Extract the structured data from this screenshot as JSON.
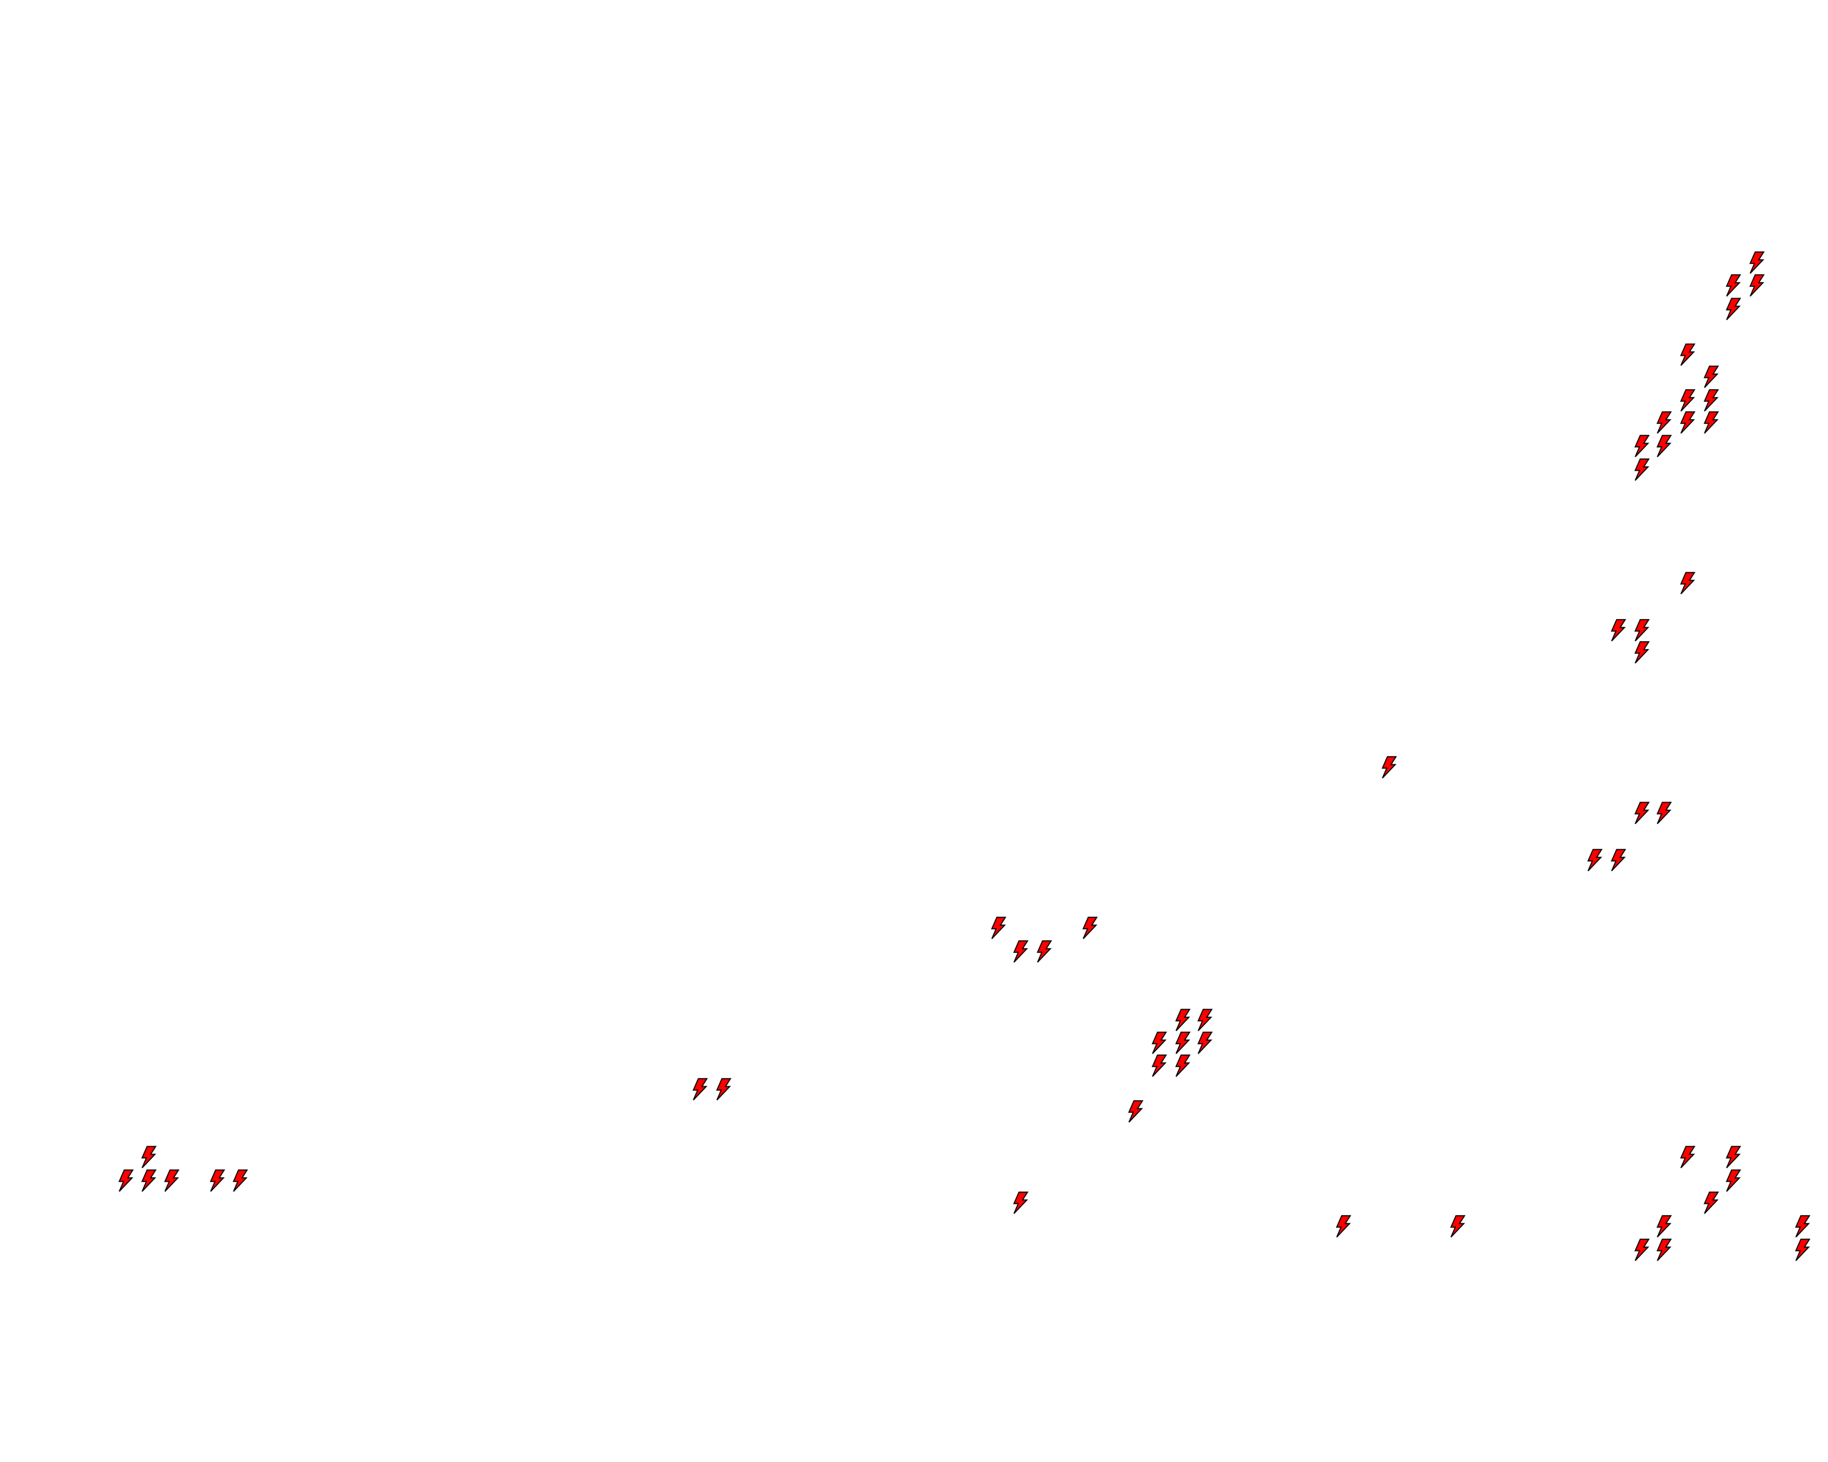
{
  "map": {
    "background": "#ffffff",
    "marker_icon": "lightning-bolt-icon",
    "marker_fill": "#ff0000",
    "marker_stroke": "#000000"
  }
}
